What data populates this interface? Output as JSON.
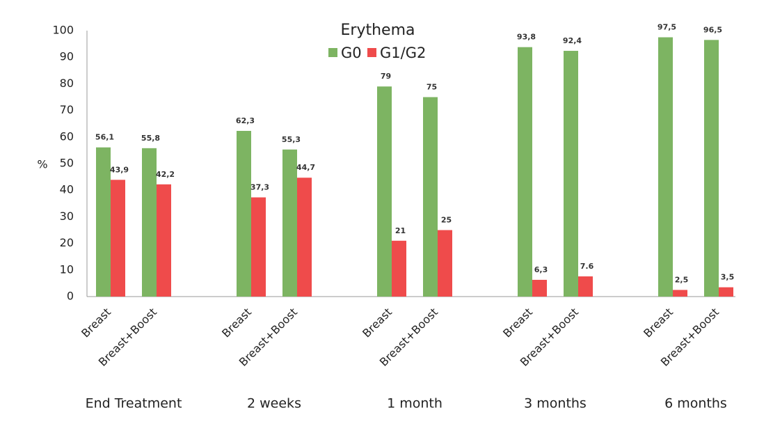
{
  "chart_data": {
    "type": "bar",
    "title": "Erythema",
    "ylabel": "%",
    "categories": [
      "Breast",
      "Breast+Boost",
      "Breast",
      "Breast+Boost",
      "Breast",
      "Breast+Boost",
      "Breast",
      "Breast+Boost",
      "Breast",
      "Breast+Boost"
    ],
    "groups": [
      "End Treatment",
      "2 weeks",
      "1 month",
      "3 months",
      "6 months"
    ],
    "series": [
      {
        "name": "G0",
        "color": "#7db462",
        "values": [
          56.1,
          55.8,
          62.3,
          55.3,
          79,
          75,
          93.8,
          92.4,
          97.5,
          96.5
        ],
        "value_labels": [
          "56,1",
          "55,8",
          "62,3",
          "55,3",
          "79",
          "75",
          "93,8",
          "92,4",
          "97,5",
          "96,5"
        ]
      },
      {
        "name": "G1/G2",
        "color": "#ef4b4b",
        "values": [
          43.9,
          42.2,
          37.3,
          44.7,
          21,
          25,
          6.3,
          7.6,
          2.5,
          3.5
        ],
        "value_labels": [
          "43,9",
          "42,2",
          "37,3",
          "44,7",
          "21",
          "25",
          "6,3",
          "7.6",
          "2,5",
          "3,5"
        ]
      }
    ],
    "ylim": [
      0,
      100
    ],
    "yticks": [
      0,
      10,
      20,
      30,
      40,
      50,
      60,
      70,
      80,
      90,
      100
    ],
    "grid": false
  }
}
